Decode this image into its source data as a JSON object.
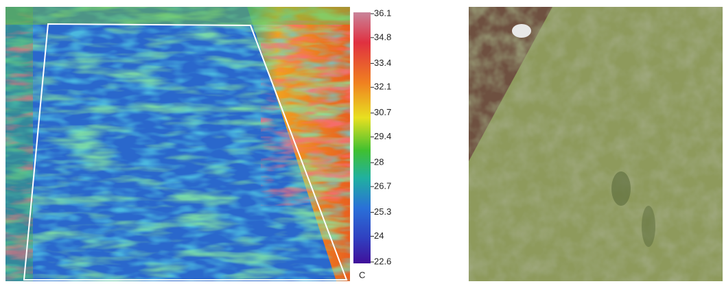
{
  "colorbar": {
    "ticks": [
      36.1,
      34.8,
      33.4,
      32.1,
      30.7,
      29.4,
      28.0,
      26.7,
      25.3,
      24.0,
      22.6
    ],
    "unit": "C"
  }
}
